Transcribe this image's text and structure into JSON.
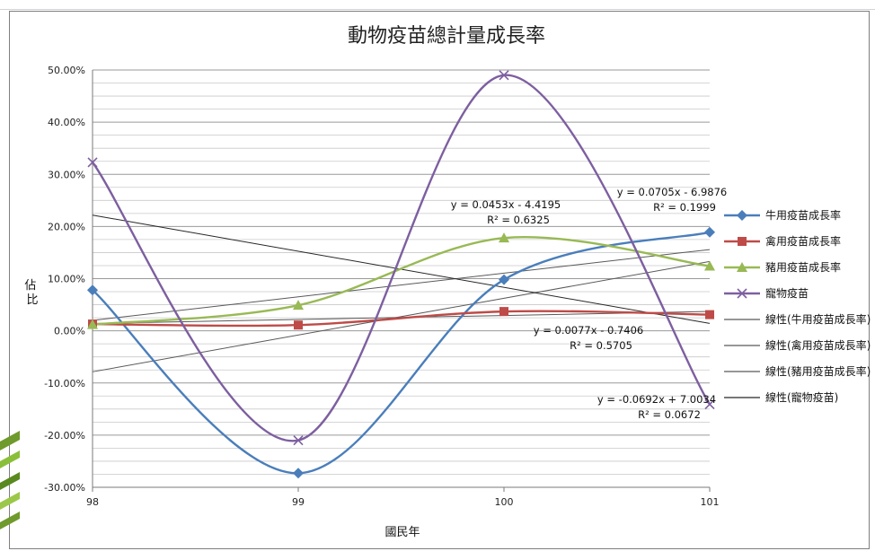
{
  "chart_data": {
    "type": "line",
    "title": "動物疫苗總計量成長率",
    "xlabel": "國民年",
    "ylabel": "佔比",
    "categories": [
      "98",
      "99",
      "100",
      "101"
    ],
    "x": [
      98,
      99,
      100,
      101
    ],
    "ylim": [
      -0.3,
      0.5
    ],
    "y_ticks": [
      "50.00%",
      "40.00%",
      "30.00%",
      "20.00%",
      "10.00%",
      "0.00%",
      "-10.00%",
      "-20.00%",
      "-30.00%"
    ],
    "y_tick_values": [
      0.5,
      0.4,
      0.3,
      0.2,
      0.1,
      0.0,
      -0.1,
      -0.2,
      -0.3
    ],
    "grid": "horizontal",
    "legend_position": "right",
    "series": [
      {
        "name": "牛用疫苗成長率",
        "color": "#4a7ebb",
        "marker": "diamond",
        "values": [
          0.078,
          -0.273,
          0.098,
          0.189
        ]
      },
      {
        "name": "禽用疫苗成長率",
        "color": "#be4b48",
        "marker": "square",
        "values": [
          0.013,
          0.011,
          0.037,
          0.031
        ]
      },
      {
        "name": "豬用疫苗成長率",
        "color": "#98b954",
        "marker": "triangle",
        "values": [
          0.012,
          0.049,
          0.178,
          0.124
        ]
      },
      {
        "name": "寵物疫苗",
        "color": "#7d5fa0",
        "marker": "x",
        "values": [
          0.323,
          -0.21,
          0.49,
          -0.141
        ]
      }
    ],
    "trendlines": [
      {
        "name": "線性(牛用疫苗成長率)",
        "color": "#595959",
        "slope": 0.0705,
        "intercept": -6.9876,
        "r2": 0.1999,
        "equation": "y = 0.0705x - 6.9876",
        "r2_label": "R² = 0.1999"
      },
      {
        "name": "線性(禽用疫苗成長率)",
        "color": "#595959",
        "slope": 0.0077,
        "intercept": -0.7406,
        "r2": 0.5705,
        "equation": "y = 0.0077x - 0.7406",
        "r2_label": "R² = 0.5705"
      },
      {
        "name": "線性(豬用疫苗成長率)",
        "color": "#595959",
        "slope": 0.0453,
        "intercept": -4.4195,
        "r2": 0.6325,
        "equation": "y = 0.0453x - 4.4195",
        "r2_label": "R² = 0.6325"
      },
      {
        "name": "線性(寵物疫苗)",
        "color": "#262626",
        "slope": -0.0692,
        "intercept": 7.0034,
        "r2": 0.0672,
        "equation": "y = -0.0692x + 7.0034",
        "r2_label": "R² = 0.0672"
      }
    ]
  }
}
